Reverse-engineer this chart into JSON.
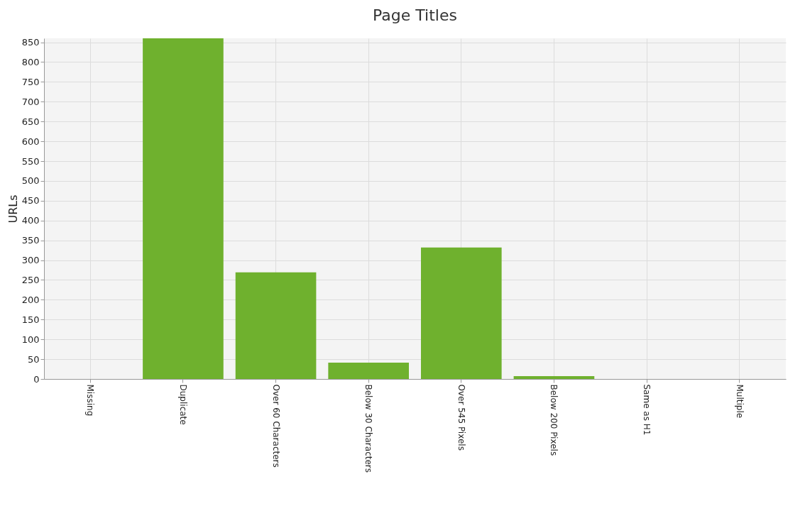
{
  "chart_data": {
    "type": "bar",
    "title": "Page Titles",
    "ylabel": "URLs",
    "categories": [
      "Missing",
      "Duplicate",
      "Over 60 Characters",
      "Below 30 Characters",
      "Over 545 Pixels",
      "Below 200 Pixels",
      "Same as H1",
      "Multiple"
    ],
    "values": [
      0,
      860,
      269,
      41,
      332,
      7,
      0,
      0
    ],
    "color": "#6fb12e",
    "ylim": [
      0,
      860
    ],
    "yticks": [
      0,
      50,
      100,
      150,
      200,
      250,
      300,
      350,
      400,
      450,
      500,
      550,
      600,
      650,
      700,
      750,
      800,
      850
    ],
    "grid": true
  }
}
